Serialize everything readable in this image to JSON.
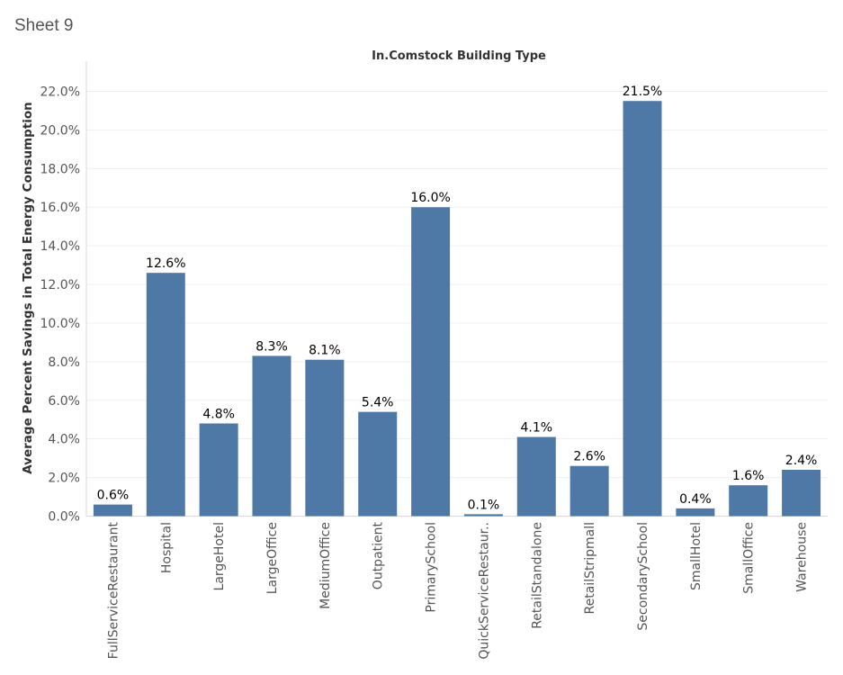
{
  "sheet": {
    "title": "Sheet 9"
  },
  "colors": {
    "bar": "#4e79a7",
    "grid": "#efefef",
    "axis": "#d9d9d9"
  },
  "chart_data": {
    "type": "bar",
    "title": "In.Comstock Building Type",
    "xlabel": "",
    "ylabel": "Average Percent Savings in Total Energy Consumption",
    "ylim": [
      0,
      22.0
    ],
    "y_ticks": [
      0,
      2,
      4,
      6,
      8,
      10,
      12,
      14,
      16,
      18,
      20,
      22
    ],
    "y_tick_labels": [
      "0.0%",
      "2.0%",
      "4.0%",
      "6.0%",
      "8.0%",
      "10.0%",
      "12.0%",
      "14.0%",
      "16.0%",
      "18.0%",
      "20.0%",
      "22.0%"
    ],
    "grid": true,
    "categories": [
      "FullServiceRestaurant",
      "Hospital",
      "LargeHotel",
      "LargeOffice",
      "MediumOffice",
      "Outpatient",
      "PrimarySchool",
      "QuickServiceRestaur..",
      "RetailStandalone",
      "RetailStripmall",
      "SecondarySchool",
      "SmallHotel",
      "SmallOffice",
      "Warehouse"
    ],
    "values": [
      0.6,
      12.6,
      4.8,
      8.3,
      8.1,
      5.4,
      16.0,
      0.1,
      4.1,
      2.6,
      21.5,
      0.4,
      1.6,
      2.4
    ],
    "data_labels": [
      "0.6%",
      "12.6%",
      "4.8%",
      "8.3%",
      "8.1%",
      "5.4%",
      "16.0%",
      "0.1%",
      "4.1%",
      "2.6%",
      "21.5%",
      "0.4%",
      "1.6%",
      "2.4%"
    ]
  }
}
